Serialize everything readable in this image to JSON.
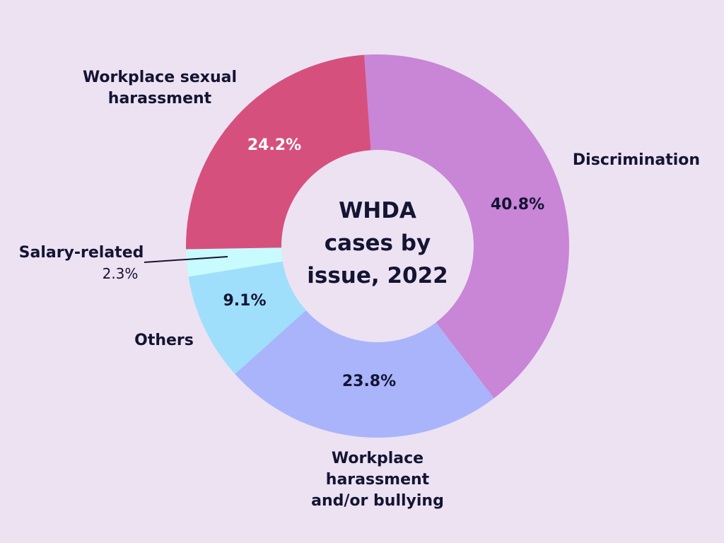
{
  "chart_data": {
    "type": "pie",
    "title_lines": [
      "WHDA",
      "cases by",
      "issue, 2022"
    ],
    "slices": [
      {
        "label": "Discrimination",
        "label_lines": [
          "Discrimination"
        ],
        "value": 40.8,
        "value_label": "40.8%",
        "color": "#c985d6"
      },
      {
        "label": "Workplace harassment and/or bullying",
        "label_lines": [
          "Workplace",
          "harassment",
          "and/or bullying"
        ],
        "value": 23.8,
        "value_label": "23.8%",
        "color": "#a9b4fb"
      },
      {
        "label": "Others",
        "label_lines": [
          "Others"
        ],
        "value": 9.1,
        "value_label": "9.1%",
        "color": "#9fdffb"
      },
      {
        "label": "Salary-related",
        "label_lines": [
          "Salary-related"
        ],
        "value": 2.3,
        "value_label": "2.3%",
        "color": "#c8fbfe"
      },
      {
        "label": "Workplace sexual harassment",
        "label_lines": [
          "Workplace sexual",
          "harassment"
        ],
        "value": 24.2,
        "value_label": "24.2%",
        "color": "#d6507e"
      }
    ],
    "value_label_colors": [
      "#141433",
      "#141433",
      "#141433",
      "#141433",
      "#ffffff"
    ],
    "legend": "none",
    "grid": false
  }
}
